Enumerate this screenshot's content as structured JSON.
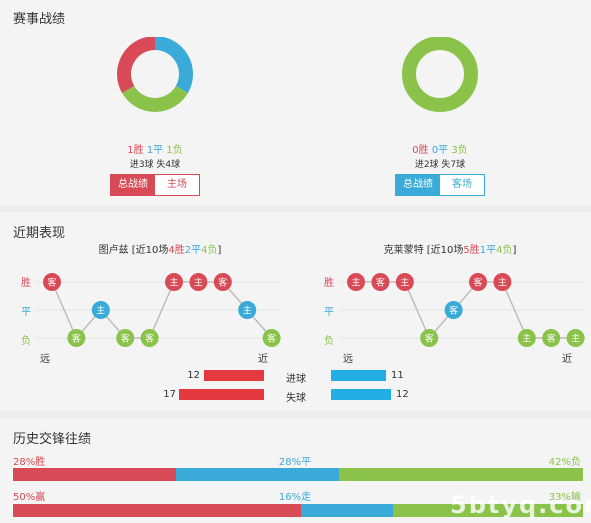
{
  "colors": {
    "win": "#d94a57",
    "draw": "#3aaad8",
    "loss": "#8bc34a",
    "goals": "#e53940",
    "conceded": "#22aee4"
  },
  "section1": {
    "title": "赛事战绩",
    "left": {
      "win": "1胜",
      "draw": "1平",
      "loss": "1负",
      "goals": "进3球 失4球",
      "tab_active": "总战绩",
      "tab_other": "主场",
      "donut": {
        "win": 1,
        "draw": 1,
        "loss": 1
      }
    },
    "right": {
      "win": "0胜",
      "draw": "0平",
      "loss": "3负",
      "goals": "进2球 失7球",
      "tab_active": "总战绩",
      "tab_other": "客场",
      "donut": {
        "win": 0,
        "draw": 0,
        "loss": 3
      }
    }
  },
  "section2": {
    "title": "近期表现",
    "left": {
      "team": "图卢兹",
      "prefix": " [近10场",
      "w": "4胜",
      "d": "2平",
      "l": "4负",
      "suffix": "]",
      "form": [
        {
          "r": "W",
          "v": "客"
        },
        {
          "r": "L",
          "v": "客"
        },
        {
          "r": "D",
          "v": "主"
        },
        {
          "r": "L",
          "v": "客"
        },
        {
          "r": "L",
          "v": "客"
        },
        {
          "r": "W",
          "v": "主"
        },
        {
          "r": "W",
          "v": "主"
        },
        {
          "r": "W",
          "v": "客"
        },
        {
          "r": "D",
          "v": "主"
        },
        {
          "r": "L",
          "v": "客"
        }
      ]
    },
    "right": {
      "team": "克莱蒙特",
      "prefix": " [近10场",
      "w": "5胜",
      "d": "1平",
      "l": "4负",
      "suffix": "]",
      "form": [
        {
          "r": "W",
          "v": "主"
        },
        {
          "r": "W",
          "v": "客"
        },
        {
          "r": "W",
          "v": "主"
        },
        {
          "r": "L",
          "v": "客"
        },
        {
          "r": "D",
          "v": "客"
        },
        {
          "r": "W",
          "v": "客"
        },
        {
          "r": "W",
          "v": "主"
        },
        {
          "r": "L",
          "v": "主"
        },
        {
          "r": "L",
          "v": "客"
        },
        {
          "r": "L",
          "v": "主"
        }
      ]
    },
    "axis": {
      "win": "胜",
      "draw": "平",
      "loss": "负",
      "far": "远",
      "near": "近"
    },
    "stats": {
      "goals_label": "进球",
      "conceded_label": "失球",
      "left_goals": 12,
      "left_conceded": 17,
      "right_goals": 11,
      "right_conceded": 12
    }
  },
  "section3": {
    "title": "历史交锋往绩",
    "row1": {
      "left": "28%胜",
      "mid": "28%平",
      "right": "42%负",
      "values": [
        28,
        28,
        42
      ]
    },
    "row2": {
      "left": "50%赢",
      "mid": "16%走",
      "right": "33%输",
      "values": [
        50,
        16,
        33
      ]
    }
  },
  "watermark": "5btyq.com"
}
